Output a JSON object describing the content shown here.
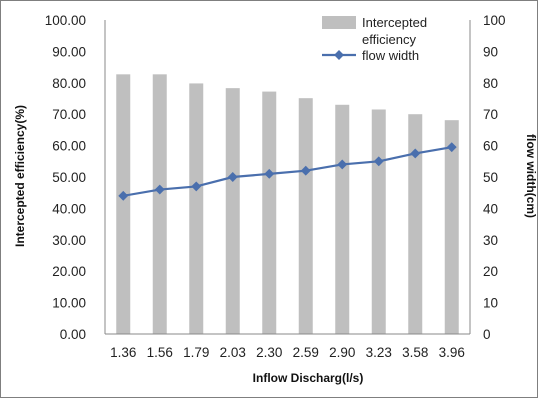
{
  "chart_data": {
    "type": "bar+line",
    "categories": [
      "1.36",
      "1.56",
      "1.79",
      "2.03",
      "2.30",
      "2.59",
      "2.90",
      "3.23",
      "3.58",
      "3.96"
    ],
    "series": [
      {
        "name": "Intercepted efficiency",
        "type": "bar",
        "axis": "left",
        "color": "#bfbfbf",
        "values": [
          82.7,
          82.7,
          79.8,
          78.3,
          77.2,
          75.1,
          73.0,
          71.5,
          70.0,
          68.1
        ]
      },
      {
        "name": "flow width",
        "type": "line",
        "axis": "right",
        "color": "#4a6fad",
        "marker": "diamond",
        "values": [
          44,
          46,
          47,
          50,
          51,
          52,
          54,
          55,
          57.5,
          59.5
        ]
      }
    ],
    "xlabel": "Inflow Discharg(l/s)",
    "ylabel_left": "Intercepted efficiency(%)",
    "ylabel_right": "flow width(cm)",
    "ylim_left": [
      0,
      100
    ],
    "ylim_right": [
      0,
      100
    ],
    "yticks_left": [
      "0.00",
      "10.00",
      "20.00",
      "30.00",
      "40.00",
      "50.00",
      "60.00",
      "70.00",
      "80.00",
      "90.00",
      "100.00"
    ],
    "yticks_right": [
      "0",
      "10",
      "20",
      "30",
      "40",
      "50",
      "60",
      "70",
      "80",
      "90",
      "100"
    ],
    "grid": false,
    "legend": {
      "placement": "top-right-inside",
      "bar_label_lines": [
        "Intercepted",
        "efficiency"
      ],
      "line_label": "flow width"
    }
  }
}
